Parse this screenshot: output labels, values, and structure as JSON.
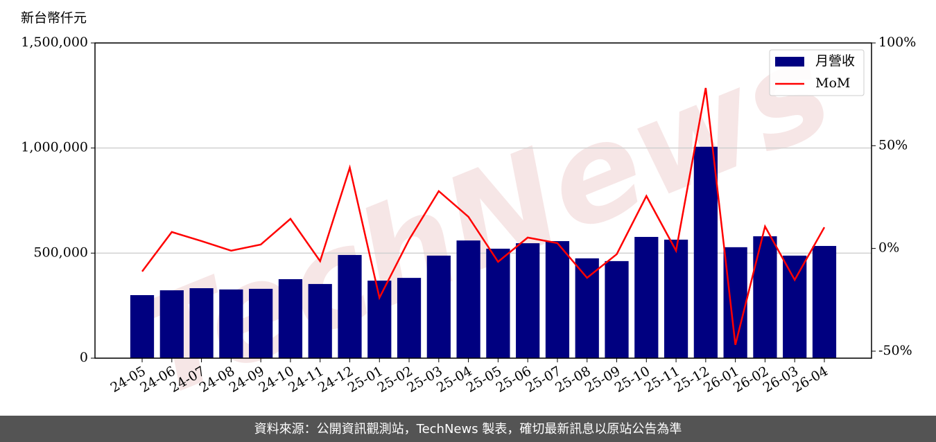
{
  "chart_data": {
    "type": "bar-line",
    "y_axis_label": "新台幣仟元",
    "watermark": "TechNews",
    "footer": "資料來源：公開資訊觀測站，TechNews 製表，確切最新訊息以原站公告為準",
    "categories": [
      "24-05",
      "24-06",
      "24-07",
      "24-08",
      "24-09",
      "24-10",
      "24-11",
      "24-12",
      "25-01",
      "25-02",
      "25-03",
      "25-04",
      "25-05",
      "25-06",
      "25-07",
      "25-08",
      "25-09",
      "25-10",
      "25-11",
      "25-12",
      "26-01",
      "26-02",
      "26-03",
      "26-04"
    ],
    "series": [
      {
        "name": "月營收",
        "color": "#000080",
        "type": "bar",
        "values": [
          300000,
          323000,
          333000,
          327000,
          330000,
          376000,
          353000,
          491000,
          369000,
          382000,
          488000,
          560000,
          521000,
          547000,
          557000,
          475000,
          462000,
          577000,
          564000,
          1006000,
          528000,
          580000,
          488000,
          534000
        ]
      },
      {
        "name": "MoM",
        "color": "#ff0000",
        "type": "line",
        "axis": "y2",
        "values": [
          -11.2,
          8.0,
          3.6,
          -1.1,
          1.9,
          14.4,
          -6.2,
          39.3,
          -24.0,
          4.3,
          27.9,
          15.4,
          -6.5,
          5.3,
          2.6,
          -14.3,
          -2.8,
          25.5,
          -1.1,
          78.1,
          -46.9,
          10.7,
          -15.3,
          10.3
        ]
      }
    ],
    "ylim": [
      0,
      1500000
    ],
    "yticks": [
      {
        "value": 0,
        "label": "0"
      },
      {
        "value": 500000,
        "label": "500,000"
      },
      {
        "value": 1000000,
        "label": "1,000,000"
      },
      {
        "value": 1500000,
        "label": "1,500,000"
      }
    ],
    "y2lim": [
      -53.4,
      100
    ],
    "y2ticks": [
      {
        "value": -50,
        "label": "-50%"
      },
      {
        "value": 0,
        "label": "0%"
      },
      {
        "value": 50,
        "label": "50%"
      },
      {
        "value": 100,
        "label": "100%"
      }
    ],
    "grid": true,
    "legend": "upper right"
  }
}
